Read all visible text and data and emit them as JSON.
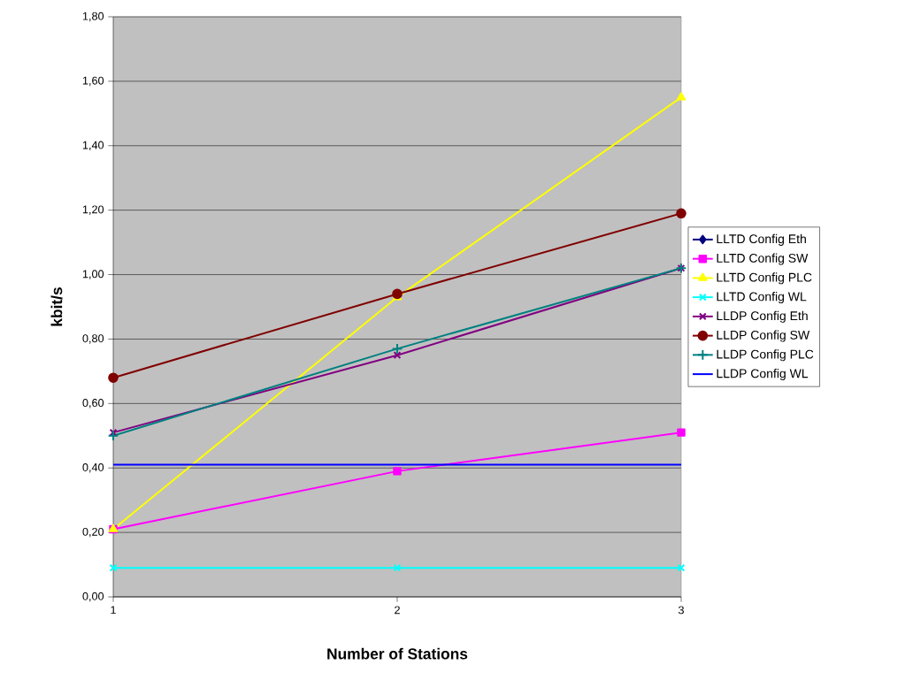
{
  "chart_data": {
    "type": "line",
    "xlabel": "Number of Stations",
    "ylabel": "kbit/s",
    "categories": [
      "1",
      "2",
      "3"
    ],
    "series": [
      {
        "name": "LLTD Config Eth",
        "color": "#000080",
        "marker": "diamond",
        "values": [
          null,
          null,
          null
        ]
      },
      {
        "name": "LLTD Config SW",
        "color": "#ff00ff",
        "marker": "square",
        "values": [
          0.21,
          0.39,
          0.51
        ]
      },
      {
        "name": "LLTD Config PLC",
        "color": "#ffff00",
        "marker": "triangle",
        "values": [
          0.21,
          0.93,
          1.55
        ]
      },
      {
        "name": "LLTD Config WL",
        "color": "#00ffff",
        "marker": "cross",
        "values": [
          0.09,
          0.09,
          0.09
        ]
      },
      {
        "name": "LLDP Config Eth",
        "color": "#800080",
        "marker": "cross",
        "values": [
          0.51,
          0.75,
          1.02
        ]
      },
      {
        "name": "LLDP Config SW",
        "color": "#800000",
        "marker": "circle",
        "values": [
          0.68,
          0.94,
          1.19
        ]
      },
      {
        "name": "LLDP Config PLC",
        "color": "#008080",
        "marker": "plus",
        "values": [
          0.5,
          0.77,
          1.02
        ]
      },
      {
        "name": "LLDP Config WL",
        "color": "#0000ff",
        "marker": "none",
        "values": [
          0.41,
          0.41,
          0.41
        ]
      }
    ],
    "ylim": [
      0,
      1.8
    ],
    "yticks": [
      {
        "value": 0,
        "label": "0,00"
      },
      {
        "value": 0.2,
        "label": "0,20"
      },
      {
        "value": 0.4,
        "label": "0,40"
      },
      {
        "value": 0.6,
        "label": "0,60"
      },
      {
        "value": 0.8,
        "label": "0,80"
      },
      {
        "value": 1.0,
        "label": "1,00"
      },
      {
        "value": 1.2,
        "label": "1,20"
      },
      {
        "value": 1.4,
        "label": "1,40"
      },
      {
        "value": 1.6,
        "label": "1,60"
      },
      {
        "value": 1.8,
        "label": "1,80"
      }
    ],
    "grid": "y",
    "legend": "right"
  }
}
